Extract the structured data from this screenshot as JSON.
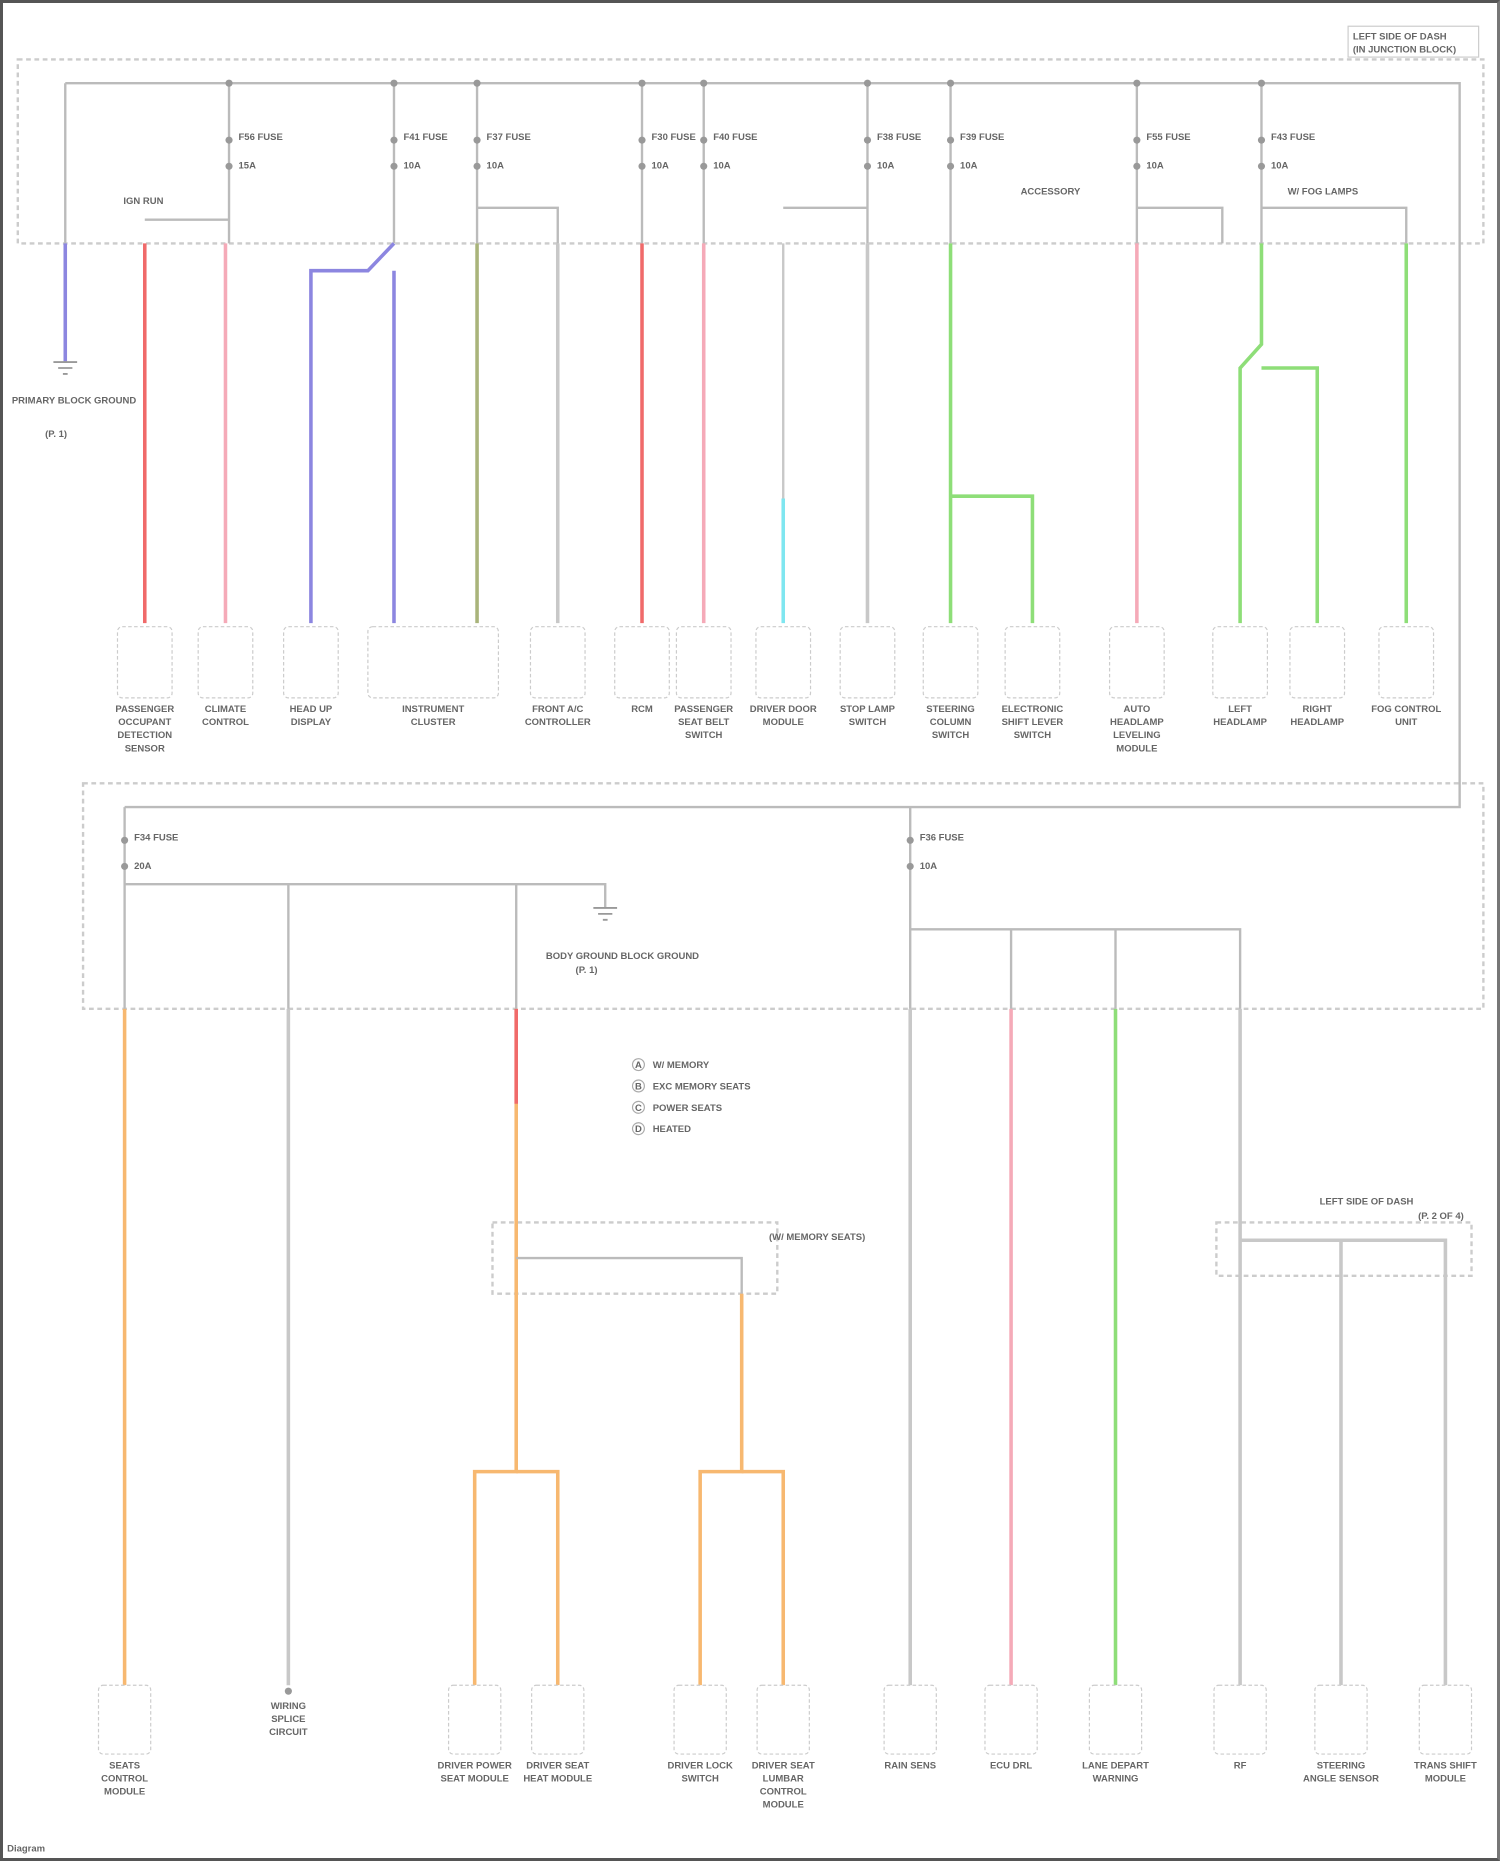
{
  "diagram": {
    "location_label": "LEFT SIDE OF DASH",
    "location_sublabel": "(IN JUNCTION BLOCK)",
    "footer": "Diagram",
    "ground_top": "PRIMARY BLOCK GROUND",
    "ground_top_ref": "(P. 1)",
    "ground_bottom": "BODY GROUND BLOCK GROUND",
    "ground_bottom_ref": "(P. 1)",
    "ignition_label": "IGN RUN",
    "accessory_label": "ACCESSORY",
    "fog_label": "W/ FOG LAMPS",
    "right_splice_label": "LEFT SIDE OF DASH",
    "right_splice_sublabel": "(P. 2 OF 4)",
    "note_label": "(W/ MEMORY SEATS)",
    "legend": [
      {
        "symbol": "A",
        "text": "W/ MEMORY"
      },
      {
        "symbol": "B",
        "text": "EXC MEMORY SEATS"
      },
      {
        "symbol": "C",
        "text": "POWER SEATS"
      },
      {
        "symbol": "D",
        "text": "HEATED"
      }
    ],
    "wire_colors": {
      "blue": "#8c86e0",
      "red": "#f06a6a",
      "pink": "#f5aab8",
      "olive": "#a9b47a",
      "gray": "#c8c8c8",
      "cyan": "#7fe6f0",
      "green": "#8ede78",
      "orange": "#f7b870"
    },
    "top_fuses": [
      {
        "name": "F56 FUSE",
        "rating": "15A"
      },
      {
        "name": "F41 FUSE",
        "rating": "10A"
      },
      {
        "name": "F37 FUSE",
        "rating": "10A"
      },
      {
        "name": "F30 FUSE",
        "rating": "10A"
      },
      {
        "name": "F40 FUSE",
        "rating": "10A"
      },
      {
        "name": "F38 FUSE",
        "rating": "10A"
      },
      {
        "name": "F39 FUSE",
        "rating": "10A"
      },
      {
        "name": "F55 FUSE",
        "rating": "10A"
      },
      {
        "name": "F43 FUSE",
        "rating": "10A"
      }
    ],
    "bottom_fuses": [
      {
        "name": "F34 FUSE",
        "rating": "20A"
      },
      {
        "name": "F36 FUSE",
        "rating": "10A"
      }
    ],
    "top_components": [
      {
        "label": "PASSENGER OCCUPANT DETECTION SENSOR",
        "wire": "red"
      },
      {
        "label": "CLIMATE CONTROL",
        "wire": "pink"
      },
      {
        "label": "HEAD UP DISPLAY",
        "wire": "blue"
      },
      {
        "label": "INSTRUMENT CLUSTER",
        "wire": "blue"
      },
      {
        "label": "FRONT A/C CONTROLLER",
        "wire": "gray"
      },
      {
        "label": "RCM",
        "wire": "red"
      },
      {
        "label": "PASSENGER SEAT BELT SWITCH",
        "wire": "pink"
      },
      {
        "label": "DRIVER DOOR MODULE",
        "wire": "cyan"
      },
      {
        "label": "STOP LAMP SWITCH",
        "wire": "gray"
      },
      {
        "label": "STEERING COLUMN SWITCH",
        "wire": "green"
      },
      {
        "label": "ELECTRONIC SHIFT LEVER SWITCH",
        "wire": "green"
      },
      {
        "label": "AUTO HEADLAMP LEVELING MODULE",
        "wire": "pink"
      },
      {
        "label": "LEFT HEADLAMP",
        "wire": "green"
      },
      {
        "label": "RIGHT HEADLAMP",
        "wire": "green"
      },
      {
        "label": "FOG CONTROL UNIT",
        "wire": "green"
      }
    ],
    "bottom_components": [
      {
        "label": "SEATS CONTROL MODULE",
        "wire": "orange"
      },
      {
        "label": "WIRING SPLICE CIRCUIT",
        "wire": "gray"
      },
      {
        "label": "DRIVER POWER SEAT MODULE",
        "wire": "orange"
      },
      {
        "label": "DRIVER SEAT HEAT MODULE",
        "wire": "orange"
      },
      {
        "label": "DRIVER LOCK SWITCH",
        "wire": "orange"
      },
      {
        "label": "DRIVER SEAT LUMBAR CONTROL MODULE",
        "wire": "orange"
      },
      {
        "label": "RAIN SENS",
        "wire": "gray"
      },
      {
        "label": "ECU DRL",
        "wire": "pink"
      },
      {
        "label": "LANE DEPART WARNING",
        "wire": "green"
      },
      {
        "label": "RF",
        "wire": "gray"
      },
      {
        "label": "STEERING ANGLE SENSOR",
        "wire": "gray"
      },
      {
        "label": "TRANS SHIFT MODULE",
        "wire": "gray"
      }
    ]
  }
}
